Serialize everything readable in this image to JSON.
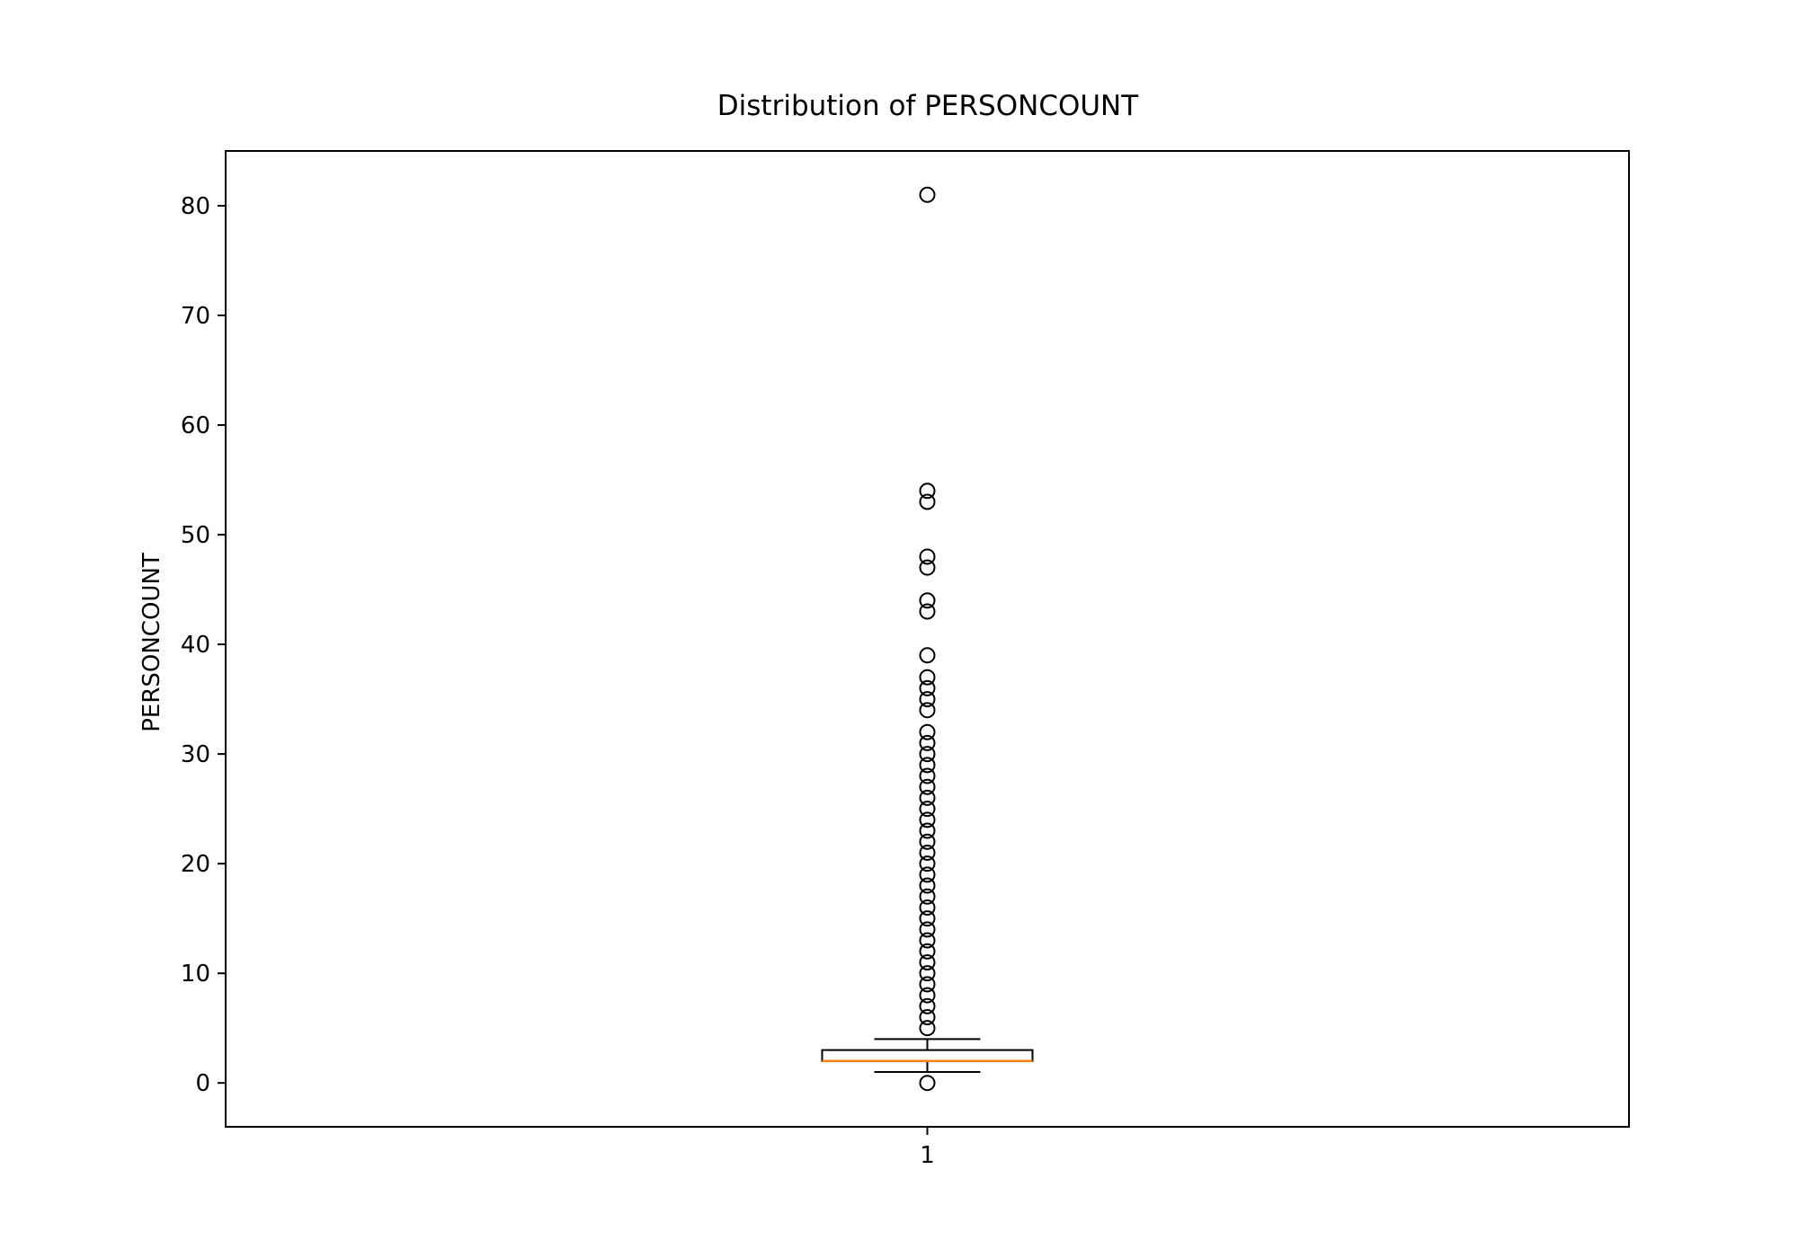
{
  "chart_data": {
    "type": "box",
    "title": "Distribution of PERSONCOUNT",
    "xlabel": "",
    "ylabel": "PERSONCOUNT",
    "ylim": [
      -4,
      85
    ],
    "categories": [
      "1"
    ],
    "yticks": [
      0,
      10,
      20,
      30,
      40,
      50,
      60,
      70,
      80
    ],
    "grid": false,
    "box": {
      "whisker_low": 1,
      "q1": 2,
      "median": 2,
      "q3": 3,
      "whisker_high": 4
    },
    "outliers": [
      0,
      5,
      6,
      7,
      8,
      9,
      10,
      11,
      12,
      13,
      14,
      15,
      16,
      17,
      18,
      19,
      20,
      21,
      22,
      23,
      24,
      25,
      26,
      27,
      28,
      29,
      30,
      31,
      32,
      34,
      35,
      36,
      37,
      39,
      43,
      44,
      47,
      48,
      53,
      54,
      81
    ],
    "colors": {
      "box": "#000000",
      "median": "#ff7f0e",
      "outlier": "#000000"
    }
  }
}
